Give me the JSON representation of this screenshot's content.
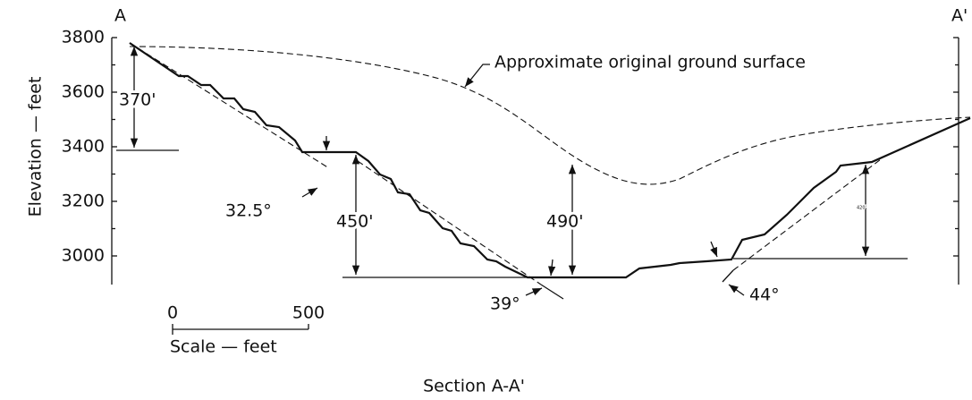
{
  "section_labels": {
    "left": "A",
    "right": "A'"
  },
  "y_axis": {
    "title": "Elevation — feet",
    "ticks": [
      "3800",
      "3600",
      "3400",
      "3200",
      "3000"
    ]
  },
  "annotations": {
    "ground_surface": "Approximate original ground surface",
    "height_upper": "370'",
    "angle_upper": "32.5°",
    "height_middle": "450'",
    "height_pit": "490'",
    "angle_middle": "39°",
    "angle_right": "44°",
    "height_right": "420'"
  },
  "scale_bar": {
    "start": "0",
    "end": "500",
    "label": "Scale — feet"
  },
  "caption": "Section A-A'"
}
